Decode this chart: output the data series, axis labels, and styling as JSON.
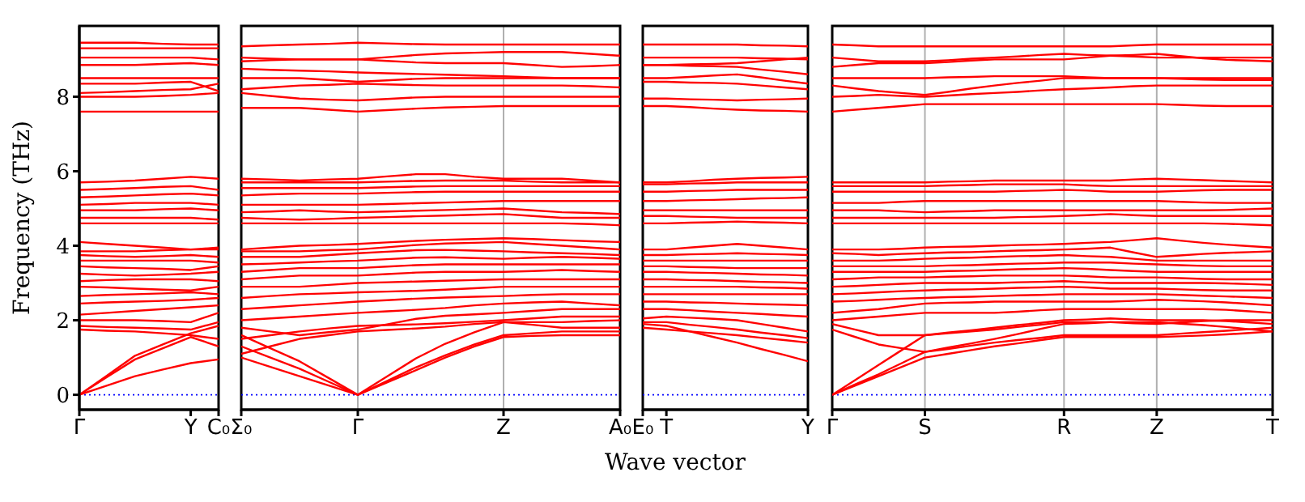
{
  "chart_data": [
    {
      "type": "line",
      "ylabel": "Frequency (THz)",
      "categories": [
        "Γ",
        null,
        null,
        null,
        "Y",
        "C₀"
      ],
      "ylim": [
        -0.4,
        9.9
      ],
      "yticks": [
        0,
        2,
        4,
        6,
        8
      ],
      "ref_lines": [
        {
          "axis": "y",
          "value": 0,
          "color": "#0000ff",
          "line_style": "dotted"
        }
      ],
      "series": [
        {
          "color": "#ff0000",
          "values": [
            0,
            0.25,
            0.5,
            0.68,
            0.85,
            0.95
          ]
        },
        {
          "color": "#ff0000",
          "values": [
            0,
            0.48,
            0.95,
            1.25,
            1.55,
            1.3
          ]
        },
        {
          "color": "#ff0000",
          "values": [
            0,
            0.52,
            1.05,
            1.35,
            1.65,
            1.85
          ]
        },
        {
          "color": "#ff0000",
          "values": [
            1.75,
            1.72,
            1.7,
            1.65,
            1.6,
            1.5
          ]
        },
        {
          "color": "#ff0000",
          "values": [
            1.85,
            1.82,
            1.8,
            1.78,
            1.75,
            1.95
          ]
        },
        {
          "color": "#ff0000",
          "values": [
            2.0,
            2.0,
            2.0,
            1.98,
            1.95,
            2.2
          ]
        },
        {
          "color": "#ff0000",
          "values": [
            2.15,
            2.2,
            2.25,
            2.3,
            2.35,
            2.4
          ]
        },
        {
          "color": "#ff0000",
          "values": [
            2.45,
            2.48,
            2.5,
            2.52,
            2.55,
            2.6
          ]
        },
        {
          "color": "#ff0000",
          "values": [
            2.65,
            2.68,
            2.7,
            2.72,
            2.75,
            2.7
          ]
        },
        {
          "color": "#ff0000",
          "values": [
            2.9,
            2.88,
            2.85,
            2.82,
            2.8,
            2.9
          ]
        },
        {
          "color": "#ff0000",
          "values": [
            3.05,
            3.08,
            3.1,
            3.1,
            3.1,
            3.05
          ]
        },
        {
          "color": "#ff0000",
          "values": [
            3.25,
            3.22,
            3.2,
            3.22,
            3.25,
            3.3
          ]
        },
        {
          "color": "#ff0000",
          "values": [
            3.45,
            3.42,
            3.4,
            3.38,
            3.35,
            3.45
          ]
        },
        {
          "color": "#ff0000",
          "values": [
            3.6,
            3.6,
            3.6,
            3.6,
            3.6,
            3.55
          ]
        },
        {
          "color": "#ff0000",
          "values": [
            3.75,
            3.72,
            3.7,
            3.72,
            3.75,
            3.7
          ]
        },
        {
          "color": "#ff0000",
          "values": [
            3.85,
            3.85,
            3.85,
            3.88,
            3.9,
            3.9
          ]
        },
        {
          "color": "#ff0000",
          "values": [
            4.1,
            4.05,
            4.0,
            3.95,
            3.9,
            3.95
          ]
        },
        {
          "color": "#ff0000",
          "values": [
            4.6,
            4.6,
            4.6,
            4.6,
            4.6,
            4.6
          ]
        },
        {
          "color": "#ff0000",
          "values": [
            4.75,
            4.75,
            4.75,
            4.75,
            4.75,
            4.7
          ]
        },
        {
          "color": "#ff0000",
          "values": [
            4.95,
            4.95,
            4.95,
            4.98,
            5.0,
            4.95
          ]
        },
        {
          "color": "#ff0000",
          "values": [
            5.1,
            5.12,
            5.15,
            5.15,
            5.15,
            5.1
          ]
        },
        {
          "color": "#ff0000",
          "values": [
            5.3,
            5.32,
            5.35,
            5.38,
            5.4,
            5.35
          ]
        },
        {
          "color": "#ff0000",
          "values": [
            5.5,
            5.52,
            5.55,
            5.58,
            5.6,
            5.5
          ]
        },
        {
          "color": "#ff0000",
          "values": [
            5.7,
            5.72,
            5.75,
            5.8,
            5.85,
            5.8
          ]
        },
        {
          "color": "#ff0000",
          "values": [
            7.6,
            7.6,
            7.6,
            7.6,
            7.6,
            7.6
          ]
        },
        {
          "color": "#ff0000",
          "values": [
            8.0,
            8.0,
            8.0,
            8.02,
            8.05,
            8.1
          ]
        },
        {
          "color": "#ff0000",
          "values": [
            8.1,
            8.12,
            8.15,
            8.18,
            8.2,
            8.35
          ]
        },
        {
          "color": "#ff0000",
          "values": [
            8.35,
            8.35,
            8.35,
            8.38,
            8.4,
            8.15
          ]
        },
        {
          "color": "#ff0000",
          "values": [
            8.5,
            8.5,
            8.5,
            8.5,
            8.5,
            8.5
          ]
        },
        {
          "color": "#ff0000",
          "values": [
            8.85,
            8.85,
            8.85,
            8.88,
            8.9,
            8.85
          ]
        },
        {
          "color": "#ff0000",
          "values": [
            9.05,
            9.05,
            9.05,
            9.05,
            9.05,
            9.0
          ]
        },
        {
          "color": "#ff0000",
          "values": [
            9.3,
            9.3,
            9.3,
            9.3,
            9.3,
            9.3
          ]
        },
        {
          "color": "#ff0000",
          "values": [
            9.45,
            9.45,
            9.45,
            9.42,
            9.4,
            9.4
          ]
        }
      ]
    },
    {
      "type": "line",
      "categories": [
        "Σ₀",
        null,
        null,
        null,
        "Γ",
        null,
        null,
        null,
        null,
        "Z",
        null,
        null,
        null,
        "A₀"
      ],
      "ylim": [
        -0.4,
        9.9
      ],
      "yticks": [
        0,
        2,
        4,
        6,
        8
      ],
      "tick_labels": "x",
      "grid": "x",
      "ref_lines": [
        {
          "axis": "y",
          "value": 0,
          "color": "#0000ff",
          "line_style": "dotted"
        }
      ],
      "series": [
        {
          "color": "#ff0000",
          "values": [
            1.0,
            0.75,
            0.5,
            0.25,
            0,
            0.33,
            0.66,
            1.0,
            1.3,
            1.55,
            1.58,
            1.6,
            1.6,
            1.6
          ]
        },
        {
          "color": "#ff0000",
          "values": [
            1.3,
            1.0,
            0.7,
            0.35,
            0,
            0.37,
            0.74,
            1.06,
            1.35,
            1.6,
            1.65,
            1.7,
            1.7,
            1.7
          ]
        },
        {
          "color": "#ff0000",
          "values": [
            1.6,
            1.25,
            0.9,
            0.45,
            0,
            0.49,
            0.98,
            1.37,
            1.68,
            1.95,
            1.88,
            1.8,
            1.8,
            1.8
          ]
        },
        {
          "color": "#ff0000",
          "values": [
            1.1,
            1.3,
            1.5,
            1.6,
            1.7,
            1.74,
            1.78,
            1.83,
            1.9,
            1.95,
            1.95,
            1.95,
            1.98,
            2.0
          ]
        },
        {
          "color": "#ff0000",
          "values": [
            1.5,
            1.6,
            1.7,
            1.78,
            1.85,
            1.87,
            1.89,
            1.92,
            1.96,
            2.0,
            2.05,
            2.1,
            2.1,
            2.1
          ]
        },
        {
          "color": "#ff0000",
          "values": [
            1.8,
            1.7,
            1.6,
            1.68,
            1.75,
            1.89,
            2.04,
            2.12,
            2.16,
            2.2,
            2.25,
            2.3,
            2.3,
            2.3
          ]
        },
        {
          "color": "#ff0000",
          "values": [
            2.0,
            2.05,
            2.1,
            2.15,
            2.2,
            2.24,
            2.28,
            2.33,
            2.4,
            2.45,
            2.48,
            2.5,
            2.45,
            2.4
          ]
        },
        {
          "color": "#ff0000",
          "values": [
            2.3,
            2.35,
            2.4,
            2.45,
            2.5,
            2.54,
            2.58,
            2.61,
            2.63,
            2.65,
            2.68,
            2.7,
            2.7,
            2.7
          ]
        },
        {
          "color": "#ff0000",
          "values": [
            2.6,
            2.65,
            2.7,
            2.72,
            2.75,
            2.77,
            2.79,
            2.82,
            2.86,
            2.9,
            2.9,
            2.9,
            2.9,
            2.9
          ]
        },
        {
          "color": "#ff0000",
          "values": [
            2.9,
            2.9,
            2.9,
            2.95,
            3.0,
            3.02,
            3.04,
            3.06,
            3.08,
            3.1,
            3.1,
            3.1,
            3.1,
            3.1
          ]
        },
        {
          "color": "#ff0000",
          "values": [
            3.1,
            3.15,
            3.2,
            3.2,
            3.2,
            3.24,
            3.28,
            3.3,
            3.3,
            3.3,
            3.32,
            3.35,
            3.32,
            3.3
          ]
        },
        {
          "color": "#ff0000",
          "values": [
            3.3,
            3.35,
            3.4,
            3.4,
            3.4,
            3.44,
            3.48,
            3.5,
            3.5,
            3.5,
            3.5,
            3.5,
            3.5,
            3.5
          ]
        },
        {
          "color": "#ff0000",
          "values": [
            3.5,
            3.52,
            3.55,
            3.58,
            3.6,
            3.64,
            3.68,
            3.69,
            3.67,
            3.65,
            3.68,
            3.7,
            3.68,
            3.65
          ]
        },
        {
          "color": "#ff0000",
          "values": [
            3.7,
            3.7,
            3.7,
            3.75,
            3.8,
            3.84,
            3.88,
            3.89,
            3.87,
            3.85,
            3.82,
            3.8,
            3.78,
            3.75
          ]
        },
        {
          "color": "#ff0000",
          "values": [
            3.85,
            3.85,
            3.85,
            3.88,
            3.9,
            3.96,
            4.02,
            4.06,
            4.08,
            4.1,
            4.05,
            4.0,
            3.95,
            3.9
          ]
        },
        {
          "color": "#ff0000",
          "values": [
            3.9,
            3.95,
            4.0,
            4.02,
            4.05,
            4.09,
            4.13,
            4.16,
            4.18,
            4.2,
            4.18,
            4.15,
            4.12,
            4.1
          ]
        },
        {
          "color": "#ff0000",
          "values": [
            4.6,
            4.6,
            4.6,
            4.6,
            4.6,
            4.6,
            4.6,
            4.6,
            4.6,
            4.6,
            4.6,
            4.6,
            4.58,
            4.55
          ]
        },
        {
          "color": "#ff0000",
          "values": [
            4.75,
            4.72,
            4.7,
            4.72,
            4.75,
            4.77,
            4.79,
            4.81,
            4.83,
            4.85,
            4.8,
            4.75,
            4.75,
            4.75
          ]
        },
        {
          "color": "#ff0000",
          "values": [
            4.9,
            4.92,
            4.95,
            4.92,
            4.9,
            4.92,
            4.94,
            4.96,
            4.98,
            5.0,
            4.95,
            4.9,
            4.88,
            4.85
          ]
        },
        {
          "color": "#ff0000",
          "values": [
            5.1,
            5.1,
            5.1,
            5.1,
            5.1,
            5.12,
            5.14,
            5.16,
            5.18,
            5.2,
            5.2,
            5.2,
            5.2,
            5.2
          ]
        },
        {
          "color": "#ff0000",
          "values": [
            5.35,
            5.38,
            5.4,
            5.4,
            5.4,
            5.42,
            5.44,
            5.45,
            5.45,
            5.45,
            5.45,
            5.45,
            5.45,
            5.45
          ]
        },
        {
          "color": "#ff0000",
          "values": [
            5.55,
            5.55,
            5.55,
            5.55,
            5.55,
            5.57,
            5.59,
            5.6,
            5.6,
            5.6,
            5.6,
            5.6,
            5.6,
            5.6
          ]
        },
        {
          "color": "#ff0000",
          "values": [
            5.7,
            5.7,
            5.7,
            5.7,
            5.7,
            5.72,
            5.74,
            5.75,
            5.75,
            5.75,
            5.72,
            5.7,
            5.7,
            5.7
          ]
        },
        {
          "color": "#ff0000",
          "values": [
            5.8,
            5.78,
            5.75,
            5.78,
            5.8,
            5.86,
            5.92,
            5.92,
            5.85,
            5.8,
            5.8,
            5.8,
            5.75,
            5.7
          ]
        },
        {
          "color": "#ff0000",
          "values": [
            7.7,
            7.7,
            7.7,
            7.65,
            7.6,
            7.64,
            7.68,
            7.71,
            7.73,
            7.75,
            7.75,
            7.75,
            7.75,
            7.75
          ]
        },
        {
          "color": "#ff0000",
          "values": [
            8.1,
            8.02,
            7.95,
            7.92,
            7.9,
            7.94,
            7.98,
            8.0,
            8.0,
            8.0,
            8.0,
            8.0,
            8.0,
            8.0
          ]
        },
        {
          "color": "#ff0000",
          "values": [
            8.2,
            8.25,
            8.3,
            8.32,
            8.35,
            8.33,
            8.31,
            8.3,
            8.3,
            8.3,
            8.3,
            8.3,
            8.28,
            8.25
          ]
        },
        {
          "color": "#ff0000",
          "values": [
            8.5,
            8.5,
            8.5,
            8.45,
            8.4,
            8.44,
            8.48,
            8.5,
            8.5,
            8.5,
            8.5,
            8.5,
            8.5,
            8.5
          ]
        },
        {
          "color": "#ff0000",
          "values": [
            8.75,
            8.72,
            8.7,
            8.68,
            8.65,
            8.63,
            8.61,
            8.59,
            8.57,
            8.55,
            8.52,
            8.5,
            8.5,
            8.5
          ]
        },
        {
          "color": "#ff0000",
          "values": [
            8.95,
            8.98,
            9.0,
            9.0,
            9.0,
            8.96,
            8.92,
            8.9,
            8.9,
            8.9,
            8.85,
            8.8,
            8.82,
            8.85
          ]
        },
        {
          "color": "#ff0000",
          "values": [
            9.05,
            9.02,
            9.0,
            9.0,
            9.0,
            9.06,
            9.12,
            9.16,
            9.18,
            9.2,
            9.2,
            9.2,
            9.15,
            9.1
          ]
        },
        {
          "color": "#ff0000",
          "values": [
            9.35,
            9.38,
            9.4,
            9.42,
            9.45,
            9.43,
            9.41,
            9.4,
            9.4,
            9.4,
            9.4,
            9.4,
            9.4,
            9.4
          ]
        }
      ]
    },
    {
      "type": "line",
      "xlabel": "Wave vector",
      "categories": [
        "E₀",
        "T",
        null,
        null,
        null,
        null,
        null,
        "Y"
      ],
      "ylim": [
        -0.4,
        9.9
      ],
      "yticks": [
        0,
        2,
        4,
        6,
        8
      ],
      "tick_labels": "x",
      "ref_lines": [
        {
          "axis": "y",
          "value": 0,
          "color": "#0000ff",
          "line_style": "dotted"
        }
      ],
      "series": [
        {
          "color": "#ff0000",
          "values": [
            1.9,
            1.85,
            1.7,
            1.55,
            1.4,
            1.23,
            1.07,
            0.9
          ]
        },
        {
          "color": "#ff0000",
          "values": [
            1.8,
            1.75,
            1.7,
            1.65,
            1.6,
            1.53,
            1.47,
            1.4
          ]
        },
        {
          "color": "#ff0000",
          "values": [
            1.95,
            1.95,
            1.88,
            1.82,
            1.75,
            1.67,
            1.6,
            1.52
          ]
        },
        {
          "color": "#ff0000",
          "values": [
            2.05,
            2.1,
            2.07,
            2.04,
            2.0,
            1.9,
            1.8,
            1.7
          ]
        },
        {
          "color": "#ff0000",
          "values": [
            2.3,
            2.3,
            2.27,
            2.23,
            2.2,
            2.17,
            2.13,
            2.1
          ]
        },
        {
          "color": "#ff0000",
          "values": [
            2.5,
            2.5,
            2.48,
            2.47,
            2.45,
            2.43,
            2.42,
            2.4
          ]
        },
        {
          "color": "#ff0000",
          "values": [
            2.7,
            2.7,
            2.7,
            2.7,
            2.7,
            2.7,
            2.7,
            2.7
          ]
        },
        {
          "color": "#ff0000",
          "values": [
            2.9,
            2.9,
            2.9,
            2.9,
            2.9,
            2.88,
            2.87,
            2.85
          ]
        },
        {
          "color": "#ff0000",
          "values": [
            3.1,
            3.1,
            3.08,
            3.07,
            3.05,
            3.03,
            3.02,
            3.0
          ]
        },
        {
          "color": "#ff0000",
          "values": [
            3.3,
            3.3,
            3.28,
            3.27,
            3.25,
            3.23,
            3.22,
            3.2
          ]
        },
        {
          "color": "#ff0000",
          "values": [
            3.45,
            3.45,
            3.43,
            3.42,
            3.4,
            3.4,
            3.4,
            3.4
          ]
        },
        {
          "color": "#ff0000",
          "values": [
            3.6,
            3.6,
            3.6,
            3.6,
            3.6,
            3.6,
            3.6,
            3.6
          ]
        },
        {
          "color": "#ff0000",
          "values": [
            3.75,
            3.75,
            3.77,
            3.78,
            3.8,
            3.78,
            3.77,
            3.75
          ]
        },
        {
          "color": "#ff0000",
          "values": [
            3.9,
            3.9,
            3.95,
            4.0,
            4.05,
            4.0,
            3.95,
            3.9
          ]
        },
        {
          "color": "#ff0000",
          "values": [
            4.6,
            4.6,
            4.62,
            4.63,
            4.65,
            4.63,
            4.62,
            4.6
          ]
        },
        {
          "color": "#ff0000",
          "values": [
            4.8,
            4.8,
            4.78,
            4.77,
            4.75,
            4.75,
            4.75,
            4.75
          ]
        },
        {
          "color": "#ff0000",
          "values": [
            4.95,
            4.95,
            4.95,
            4.95,
            4.95,
            4.95,
            4.95,
            4.95
          ]
        },
        {
          "color": "#ff0000",
          "values": [
            5.2,
            5.2,
            5.22,
            5.23,
            5.25,
            5.27,
            5.28,
            5.3
          ]
        },
        {
          "color": "#ff0000",
          "values": [
            5.45,
            5.45,
            5.47,
            5.48,
            5.5,
            5.5,
            5.5,
            5.5
          ]
        },
        {
          "color": "#ff0000",
          "values": [
            5.65,
            5.65,
            5.67,
            5.68,
            5.7,
            5.7,
            5.7,
            5.7
          ]
        },
        {
          "color": "#ff0000",
          "values": [
            5.7,
            5.7,
            5.73,
            5.77,
            5.8,
            5.82,
            5.83,
            5.85
          ]
        },
        {
          "color": "#ff0000",
          "values": [
            7.75,
            7.75,
            7.72,
            7.68,
            7.65,
            7.63,
            7.62,
            7.6
          ]
        },
        {
          "color": "#ff0000",
          "values": [
            7.95,
            7.95,
            7.93,
            7.92,
            7.9,
            7.92,
            7.93,
            7.95
          ]
        },
        {
          "color": "#ff0000",
          "values": [
            8.4,
            8.4,
            8.38,
            8.37,
            8.35,
            8.3,
            8.25,
            8.2
          ]
        },
        {
          "color": "#ff0000",
          "values": [
            8.5,
            8.5,
            8.53,
            8.57,
            8.6,
            8.52,
            8.43,
            8.35
          ]
        },
        {
          "color": "#ff0000",
          "values": [
            8.85,
            8.85,
            8.83,
            8.82,
            8.8,
            8.73,
            8.67,
            8.6
          ]
        },
        {
          "color": "#ff0000",
          "values": [
            8.85,
            8.85,
            8.87,
            8.88,
            8.9,
            8.95,
            9.0,
            9.05
          ]
        },
        {
          "color": "#ff0000",
          "values": [
            9.05,
            9.05,
            9.05,
            9.05,
            9.05,
            9.03,
            9.02,
            9.0
          ]
        },
        {
          "color": "#ff0000",
          "values": [
            9.4,
            9.4,
            9.4,
            9.4,
            9.4,
            9.38,
            9.37,
            9.35
          ]
        }
      ]
    },
    {
      "type": "line",
      "categories": [
        "Γ",
        null,
        null,
        null,
        "S",
        null,
        null,
        null,
        null,
        null,
        "R",
        null,
        null,
        null,
        "Z",
        null,
        null,
        null,
        null,
        "T"
      ],
      "ylim": [
        -0.4,
        9.9
      ],
      "yticks": [
        0,
        2,
        4,
        6,
        8
      ],
      "tick_labels": "x",
      "grid": "x",
      "ref_lines": [
        {
          "axis": "y",
          "value": 0,
          "color": "#0000ff",
          "line_style": "dotted"
        }
      ],
      "series": [
        {
          "color": "#ff0000",
          "values": [
            0,
            0.25,
            0.5,
            0.75,
            1.0,
            1.1,
            1.2,
            1.3,
            1.38,
            1.47,
            1.55,
            1.55,
            1.55,
            1.55,
            1.55,
            1.57,
            1.59,
            1.62,
            1.66,
            1.7
          ]
        },
        {
          "color": "#ff0000",
          "values": [
            0,
            0.28,
            0.55,
            0.85,
            1.15,
            1.23,
            1.32,
            1.4,
            1.47,
            1.53,
            1.6,
            1.6,
            1.6,
            1.6,
            1.6,
            1.64,
            1.68,
            1.72,
            1.76,
            1.8
          ]
        },
        {
          "color": "#ff0000",
          "values": [
            0,
            0.4,
            0.8,
            1.2,
            1.6,
            1.65,
            1.7,
            1.75,
            1.82,
            1.88,
            1.95,
            1.95,
            1.95,
            1.92,
            1.9,
            1.94,
            1.98,
            2.0,
            2.0,
            2.0
          ]
        },
        {
          "color": "#ff0000",
          "values": [
            1.75,
            1.55,
            1.35,
            1.25,
            1.15,
            1.27,
            1.38,
            1.5,
            1.63,
            1.77,
            1.9,
            1.92,
            1.95,
            1.95,
            1.95,
            1.91,
            1.87,
            1.82,
            1.76,
            1.7
          ]
        },
        {
          "color": "#ff0000",
          "values": [
            1.9,
            1.75,
            1.6,
            1.6,
            1.6,
            1.67,
            1.73,
            1.8,
            1.87,
            1.93,
            2.0,
            2.02,
            2.05,
            2.02,
            2.0,
            2.0,
            2.0,
            1.98,
            1.94,
            1.9
          ]
        },
        {
          "color": "#ff0000",
          "values": [
            2.0,
            2.05,
            2.1,
            2.15,
            2.2,
            2.2,
            2.2,
            2.2,
            2.23,
            2.27,
            2.3,
            2.3,
            2.3,
            2.3,
            2.3,
            2.3,
            2.3,
            2.28,
            2.24,
            2.2
          ]
        },
        {
          "color": "#ff0000",
          "values": [
            2.2,
            2.25,
            2.3,
            2.38,
            2.45,
            2.47,
            2.48,
            2.5,
            2.5,
            2.5,
            2.5,
            2.5,
            2.5,
            2.52,
            2.55,
            2.53,
            2.51,
            2.48,
            2.44,
            2.4
          ]
        },
        {
          "color": "#ff0000",
          "values": [
            2.5,
            2.52,
            2.55,
            2.58,
            2.6,
            2.62,
            2.63,
            2.65,
            2.67,
            2.68,
            2.7,
            2.7,
            2.7,
            2.7,
            2.7,
            2.68,
            2.66,
            2.64,
            2.62,
            2.6
          ]
        },
        {
          "color": "#ff0000",
          "values": [
            2.7,
            2.72,
            2.75,
            2.78,
            2.8,
            2.82,
            2.83,
            2.85,
            2.87,
            2.88,
            2.9,
            2.88,
            2.85,
            2.85,
            2.85,
            2.83,
            2.81,
            2.8,
            2.8,
            2.8
          ]
        },
        {
          "color": "#ff0000",
          "values": [
            2.9,
            2.92,
            2.95,
            2.98,
            3.0,
            3.0,
            3.0,
            3.0,
            3.02,
            3.03,
            3.05,
            3.02,
            3.0,
            3.0,
            3.0,
            3.0,
            3.0,
            2.99,
            2.97,
            2.95
          ]
        },
        {
          "color": "#ff0000",
          "values": [
            3.1,
            3.12,
            3.15,
            3.15,
            3.15,
            3.17,
            3.18,
            3.2,
            3.2,
            3.2,
            3.2,
            3.18,
            3.15,
            3.15,
            3.15,
            3.13,
            3.11,
            3.1,
            3.1,
            3.1
          ]
        },
        {
          "color": "#ff0000",
          "values": [
            3.3,
            3.3,
            3.3,
            3.3,
            3.3,
            3.32,
            3.33,
            3.35,
            3.37,
            3.38,
            3.4,
            3.38,
            3.35,
            3.32,
            3.3,
            3.3,
            3.3,
            3.3,
            3.3,
            3.3
          ]
        },
        {
          "color": "#ff0000",
          "values": [
            3.45,
            3.45,
            3.45,
            3.45,
            3.45,
            3.47,
            3.48,
            3.5,
            3.52,
            3.53,
            3.55,
            3.55,
            3.55,
            3.52,
            3.5,
            3.48,
            3.46,
            3.45,
            3.45,
            3.45
          ]
        },
        {
          "color": "#ff0000",
          "values": [
            3.6,
            3.6,
            3.6,
            3.62,
            3.65,
            3.67,
            3.68,
            3.7,
            3.72,
            3.73,
            3.75,
            3.72,
            3.7,
            3.65,
            3.6,
            3.6,
            3.6,
            3.6,
            3.6,
            3.6
          ]
        },
        {
          "color": "#ff0000",
          "values": [
            3.8,
            3.78,
            3.75,
            3.78,
            3.8,
            3.82,
            3.83,
            3.85,
            3.87,
            3.88,
            3.9,
            3.92,
            3.95,
            3.82,
            3.7,
            3.74,
            3.78,
            3.81,
            3.83,
            3.85
          ]
        },
        {
          "color": "#ff0000",
          "values": [
            3.9,
            3.9,
            3.9,
            3.92,
            3.95,
            3.97,
            3.98,
            4.0,
            4.02,
            4.03,
            4.05,
            4.08,
            4.1,
            4.15,
            4.2,
            4.14,
            4.08,
            4.03,
            3.99,
            3.95
          ]
        },
        {
          "color": "#ff0000",
          "values": [
            4.6,
            4.6,
            4.6,
            4.6,
            4.6,
            4.6,
            4.6,
            4.6,
            4.6,
            4.6,
            4.6,
            4.6,
            4.6,
            4.6,
            4.6,
            4.6,
            4.6,
            4.59,
            4.57,
            4.55
          ]
        },
        {
          "color": "#ff0000",
          "values": [
            4.75,
            4.75,
            4.75,
            4.75,
            4.75,
            4.75,
            4.75,
            4.75,
            4.77,
            4.78,
            4.8,
            4.82,
            4.85,
            4.82,
            4.8,
            4.8,
            4.8,
            4.8,
            4.8,
            4.8
          ]
        },
        {
          "color": "#ff0000",
          "values": [
            4.95,
            4.95,
            4.95,
            4.92,
            4.9,
            4.92,
            4.93,
            4.95,
            4.95,
            4.95,
            4.95,
            4.95,
            4.95,
            4.95,
            4.95,
            4.95,
            4.95,
            4.96,
            4.98,
            5.0
          ]
        },
        {
          "color": "#ff0000",
          "values": [
            5.15,
            5.15,
            5.15,
            5.18,
            5.2,
            5.2,
            5.2,
            5.2,
            5.2,
            5.2,
            5.2,
            5.2,
            5.2,
            5.2,
            5.2,
            5.18,
            5.16,
            5.15,
            5.15,
            5.15
          ]
        },
        {
          "color": "#ff0000",
          "values": [
            5.45,
            5.45,
            5.45,
            5.45,
            5.45,
            5.45,
            5.45,
            5.45,
            5.47,
            5.48,
            5.5,
            5.48,
            5.45,
            5.45,
            5.45,
            5.47,
            5.49,
            5.5,
            5.5,
            5.5
          ]
        },
        {
          "color": "#ff0000",
          "values": [
            5.6,
            5.6,
            5.6,
            5.6,
            5.6,
            5.62,
            5.63,
            5.65,
            5.65,
            5.65,
            5.65,
            5.62,
            5.6,
            5.6,
            5.6,
            5.6,
            5.6,
            5.6,
            5.6,
            5.6
          ]
        },
        {
          "color": "#ff0000",
          "values": [
            5.7,
            5.7,
            5.7,
            5.7,
            5.7,
            5.72,
            5.73,
            5.75,
            5.75,
            5.75,
            5.75,
            5.75,
            5.75,
            5.78,
            5.8,
            5.78,
            5.76,
            5.74,
            5.72,
            5.7
          ]
        },
        {
          "color": "#ff0000",
          "values": [
            7.6,
            7.65,
            7.7,
            7.75,
            7.8,
            7.8,
            7.8,
            7.8,
            7.8,
            7.8,
            7.8,
            7.8,
            7.8,
            7.8,
            7.8,
            7.78,
            7.76,
            7.75,
            7.75,
            7.75
          ]
        },
        {
          "color": "#ff0000",
          "values": [
            8.0,
            8.02,
            8.05,
            8.02,
            8.0,
            8.03,
            8.07,
            8.1,
            8.13,
            8.17,
            8.2,
            8.22,
            8.25,
            8.28,
            8.3,
            8.3,
            8.3,
            8.3,
            8.3,
            8.3
          ]
        },
        {
          "color": "#ff0000",
          "values": [
            8.3,
            8.22,
            8.15,
            8.1,
            8.05,
            8.13,
            8.22,
            8.3,
            8.37,
            8.43,
            8.5,
            8.5,
            8.5,
            8.5,
            8.5,
            8.48,
            8.46,
            8.45,
            8.45,
            8.45
          ]
        },
        {
          "color": "#ff0000",
          "values": [
            8.5,
            8.5,
            8.5,
            8.5,
            8.5,
            8.52,
            8.53,
            8.55,
            8.55,
            8.55,
            8.55,
            8.52,
            8.5,
            8.5,
            8.5,
            8.5,
            8.5,
            8.5,
            8.5,
            8.5
          ]
        },
        {
          "color": "#ff0000",
          "values": [
            8.8,
            8.85,
            8.9,
            8.9,
            8.9,
            8.93,
            8.97,
            9.0,
            9.0,
            9.0,
            9.0,
            9.05,
            9.1,
            9.12,
            9.15,
            9.09,
            9.03,
            8.99,
            8.97,
            8.95
          ]
        },
        {
          "color": "#ff0000",
          "values": [
            9.05,
            9.0,
            8.95,
            8.95,
            8.95,
            8.98,
            9.02,
            9.05,
            9.08,
            9.12,
            9.15,
            9.12,
            9.1,
            9.08,
            9.05,
            9.05,
            9.05,
            9.05,
            9.05,
            9.05
          ]
        },
        {
          "color": "#ff0000",
          "values": [
            9.4,
            9.38,
            9.35,
            9.35,
            9.35,
            9.35,
            9.35,
            9.35,
            9.35,
            9.35,
            9.35,
            9.35,
            9.35,
            9.38,
            9.4,
            9.4,
            9.4,
            9.4,
            9.4,
            9.4
          ]
        }
      ]
    }
  ]
}
